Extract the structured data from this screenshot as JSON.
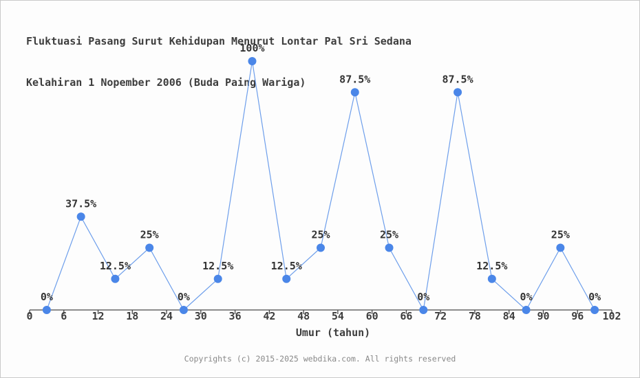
{
  "page": {
    "background": "#fdfdfd",
    "border_color": "#c9c9c9"
  },
  "header": {
    "title_line1": "Fluktuasi Pasang Surut Kehidupan Menurut Lontar Pal Sri Sedana",
    "title_line2": "Kelahiran 1 Nopember 2006 (Buda Paing Wariga)"
  },
  "chart_data": {
    "type": "line",
    "title": "Fluktuasi Pasang Surut Kehidupan Menurut Lontar Pal Sri Sedana Kelahiran 1 Nopember 2006 (Buda Paing Wariga)",
    "xlabel": "Umur (tahun)",
    "ylabel": "",
    "x": [
      3,
      9,
      15,
      21,
      27,
      33,
      39,
      45,
      51,
      57,
      63,
      69,
      75,
      81,
      87,
      93,
      99
    ],
    "values": [
      0,
      37.5,
      12.5,
      25,
      0,
      12.5,
      100,
      12.5,
      25,
      87.5,
      25,
      0,
      87.5,
      12.5,
      0,
      25,
      0
    ],
    "point_labels": [
      "0%",
      "37.5%",
      "12.5%",
      "25%",
      "0%",
      "12.5%",
      "100%",
      "12.5%",
      "25%",
      "87.5%",
      "25%",
      "0%",
      "87.5%",
      "12.5%",
      "0%",
      "25%",
      "0%"
    ],
    "x_ticks": [
      0,
      6,
      12,
      18,
      24,
      30,
      36,
      42,
      48,
      54,
      60,
      66,
      72,
      78,
      84,
      90,
      96,
      102
    ],
    "xlim": [
      0,
      102
    ],
    "ylim": [
      0,
      100
    ],
    "grid": false,
    "legend": "none",
    "colors": {
      "marker": "#4a86e8",
      "line": "#6d9eeb",
      "axis": "#4a4a4a",
      "tick_text": "#3d3d3d",
      "label_text": "#333333"
    }
  },
  "footer": {
    "copyright": "Copyrights (c) 2015-2025 webdika.com. All rights reserved"
  }
}
